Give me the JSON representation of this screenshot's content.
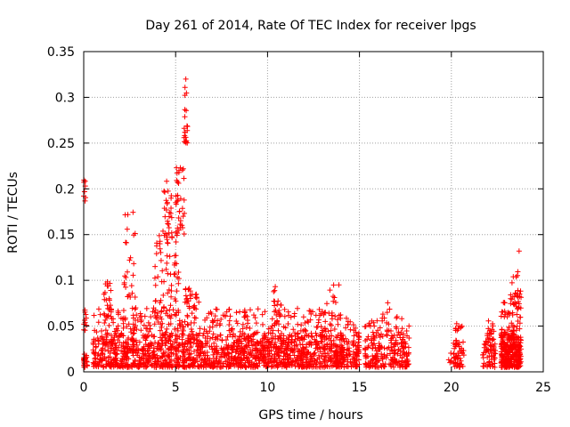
{
  "chart_data": {
    "type": "scatter",
    "title": "Day 261 of 2014, Rate Of TEC Index for receiver lpgs",
    "xlabel": "GPS time / hours",
    "ylabel": "ROTI / TECUs",
    "xlim": [
      0,
      25
    ],
    "ylim": [
      0,
      0.35
    ],
    "xticks": [
      0,
      5,
      10,
      15,
      20,
      25
    ],
    "yticks": [
      0,
      0.05,
      0.1,
      0.15,
      0.2,
      0.25,
      0.3,
      0.35
    ],
    "xtick_labels": [
      "0",
      "5",
      "10",
      "15",
      "20",
      "25"
    ],
    "ytick_labels": [
      "0",
      "0.05",
      "0.1",
      "0.15",
      "0.2",
      "0.25",
      "0.3",
      "0.35"
    ],
    "grid": true,
    "marker": "+",
    "color": "#ff0000",
    "point_clusters": [
      {
        "x_range": [
          0.0,
          0.2
        ],
        "y_range": [
          0.005,
          0.022
        ],
        "count": 25
      },
      {
        "x_range": [
          0.0,
          0.15
        ],
        "y_range": [
          0.045,
          0.07
        ],
        "count": 10
      },
      {
        "x_range": [
          0.0,
          0.1
        ],
        "y_range": [
          0.18,
          0.222
        ],
        "count": 8
      },
      {
        "x_range": [
          0.5,
          15.0
        ],
        "y_range": [
          0.005,
          0.04
        ],
        "count": 1500
      },
      {
        "x_range": [
          0.5,
          15.0
        ],
        "y_range": [
          0.04,
          0.07
        ],
        "count": 320
      },
      {
        "x_range": [
          1.1,
          1.5
        ],
        "y_range": [
          0.06,
          0.1
        ],
        "count": 25
      },
      {
        "x_range": [
          2.2,
          2.8
        ],
        "y_range": [
          0.08,
          0.175
        ],
        "count": 25
      },
      {
        "x_range": [
          3.8,
          5.2
        ],
        "y_range": [
          0.06,
          0.15
        ],
        "count": 70
      },
      {
        "x_range": [
          4.3,
          4.8
        ],
        "y_range": [
          0.14,
          0.21
        ],
        "count": 30
      },
      {
        "x_range": [
          5.0,
          5.5
        ],
        "y_range": [
          0.15,
          0.226
        ],
        "count": 35
      },
      {
        "x_range": [
          5.45,
          5.65
        ],
        "y_range": [
          0.25,
          0.27
        ],
        "count": 15
      },
      {
        "x_range": [
          5.45,
          5.6
        ],
        "y_range": [
          0.27,
          0.333
        ],
        "count": 7
      },
      {
        "x_range": [
          5.5,
          6.3
        ],
        "y_range": [
          0.07,
          0.095
        ],
        "count": 25
      },
      {
        "x_range": [
          10.3,
          10.9
        ],
        "y_range": [
          0.07,
          0.095
        ],
        "count": 10
      },
      {
        "x_range": [
          13.0,
          14.0
        ],
        "y_range": [
          0.06,
          0.1
        ],
        "count": 15
      },
      {
        "x_range": [
          15.3,
          17.7
        ],
        "y_range": [
          0.005,
          0.04
        ],
        "count": 200
      },
      {
        "x_range": [
          15.3,
          17.7
        ],
        "y_range": [
          0.04,
          0.065
        ],
        "count": 40
      },
      {
        "x_range": [
          16.5,
          16.8
        ],
        "y_range": [
          0.065,
          0.077
        ],
        "count": 3
      },
      {
        "x_range": [
          19.8,
          20.0
        ],
        "y_range": [
          0.01,
          0.025
        ],
        "count": 5
      },
      {
        "x_range": [
          20.1,
          20.7
        ],
        "y_range": [
          0.005,
          0.035
        ],
        "count": 50
      },
      {
        "x_range": [
          20.2,
          20.6
        ],
        "y_range": [
          0.045,
          0.055
        ],
        "count": 10
      },
      {
        "x_range": [
          21.7,
          22.4
        ],
        "y_range": [
          0.005,
          0.045
        ],
        "count": 70
      },
      {
        "x_range": [
          22.0,
          22.3
        ],
        "y_range": [
          0.045,
          0.058
        ],
        "count": 6
      },
      {
        "x_range": [
          22.7,
          23.8
        ],
        "y_range": [
          0.005,
          0.04
        ],
        "count": 280
      },
      {
        "x_range": [
          22.7,
          23.8
        ],
        "y_range": [
          0.04,
          0.08
        ],
        "count": 60
      },
      {
        "x_range": [
          23.2,
          23.8
        ],
        "y_range": [
          0.08,
          0.11
        ],
        "count": 18
      },
      {
        "x_range": [
          23.65,
          23.75
        ],
        "y_range": [
          0.125,
          0.132
        ],
        "count": 1
      }
    ]
  }
}
